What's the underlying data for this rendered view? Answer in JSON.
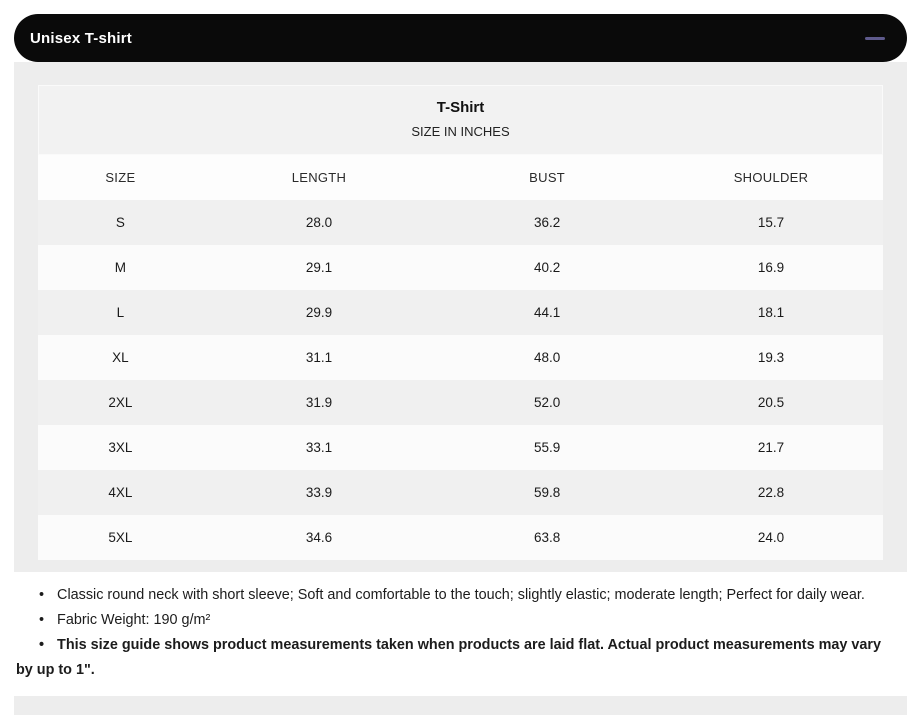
{
  "accordion": {
    "title": "Unisex T-shirt",
    "state": "expanded"
  },
  "colors": {
    "header_bg": "#0a0a0a",
    "header_text": "#ffffff",
    "collapse_icon": "#5e5a8c",
    "body_bg": "#ededed",
    "row_shade": "#f0f0f0"
  },
  "size_chart": {
    "title": "T-Shirt",
    "subtitle": "SIZE IN INCHES",
    "columns": [
      "SIZE",
      "LENGTH",
      "BUST",
      "SHOULDER"
    ],
    "rows": [
      {
        "size": "S",
        "length": "28.0",
        "bust": "36.2",
        "shoulder": "15.7",
        "shaded": true
      },
      {
        "size": "M",
        "length": "29.1",
        "bust": "40.2",
        "shoulder": "16.9",
        "shaded": false
      },
      {
        "size": "L",
        "length": "29.9",
        "bust": "44.1",
        "shoulder": "18.1",
        "shaded": true
      },
      {
        "size": "XL",
        "length": "31.1",
        "bust": "48.0",
        "shoulder": "19.3",
        "shaded": false
      },
      {
        "size": "2XL",
        "length": "31.9",
        "bust": "52.0",
        "shoulder": "20.5",
        "shaded": true
      },
      {
        "size": "3XL",
        "length": "33.1",
        "bust": "55.9",
        "shoulder": "21.7",
        "shaded": false
      },
      {
        "size": "4XL",
        "length": "33.9",
        "bust": "59.8",
        "shoulder": "22.8",
        "shaded": true
      },
      {
        "size": "5XL",
        "length": "34.6",
        "bust": "63.8",
        "shoulder": "24.0",
        "shaded": false
      }
    ]
  },
  "notes": [
    {
      "text": "Classic round neck with short sleeve; Soft and comfortable to the touch; slightly elastic; moderate length; Perfect for daily wear.",
      "bold": false
    },
    {
      "text": "Fabric Weight: 190 g/m²",
      "bold": false
    },
    {
      "text": "This size guide shows product measurements taken when products are laid flat. Actual product measurements may vary by up to 1\".",
      "bold": true
    }
  ]
}
